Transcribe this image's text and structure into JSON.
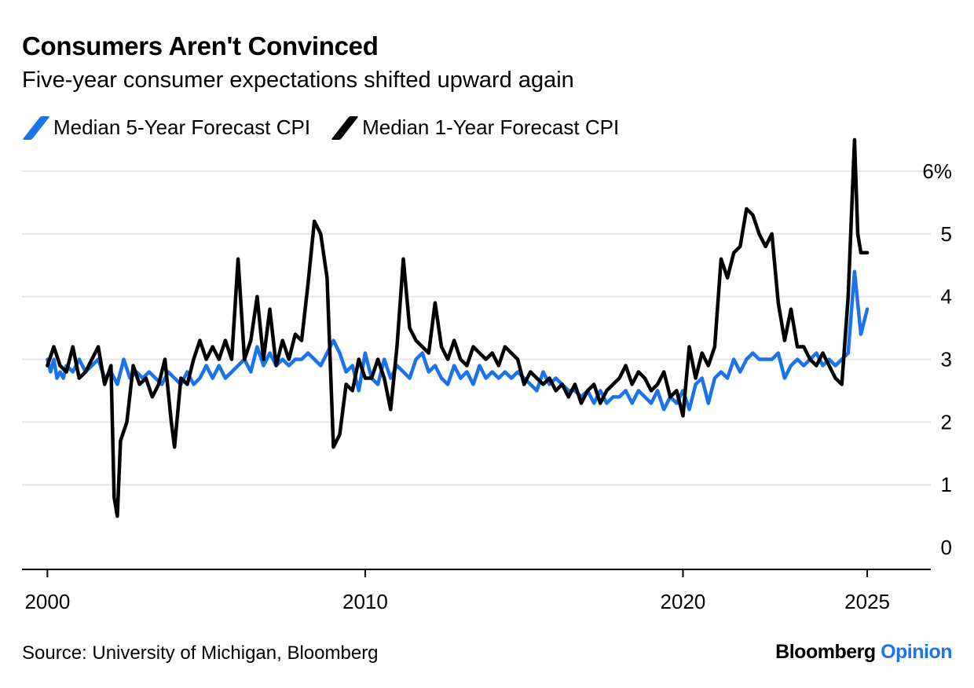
{
  "header": {
    "title": "Consumers Aren't Convinced",
    "subtitle": "Five-year consumer expectations shifted upward again"
  },
  "footer": {
    "source": "Source: University of Michigan, Bloomberg",
    "brand_primary": "Bloomberg",
    "brand_accent": "Opinion"
  },
  "colors": {
    "five_year": "#1a73e8",
    "one_year": "#000000",
    "grid": "#e6e6e6",
    "axis": "#000000"
  },
  "chart_data": {
    "type": "line",
    "title": "Consumers Aren't Convinced",
    "subtitle": "Five-year consumer expectations shifted upward again",
    "xlabel": "",
    "ylabel": "",
    "xlim": [
      1999.2,
      2027.8
    ],
    "ylim": [
      -0.35,
      6.35
    ],
    "grid": "horizontal",
    "legend": "top-left",
    "x_ticks": [
      {
        "value": 2000,
        "label": "2000"
      },
      {
        "value": 2010,
        "label": "2010"
      },
      {
        "value": 2020,
        "label": "2020"
      },
      {
        "value": 2025.8,
        "label": "2025"
      }
    ],
    "y_ticks": [
      {
        "value": 0,
        "label": "0"
      },
      {
        "value": 1,
        "label": "1"
      },
      {
        "value": 2,
        "label": "2"
      },
      {
        "value": 3,
        "label": "3"
      },
      {
        "value": 4,
        "label": "4"
      },
      {
        "value": 5,
        "label": "5"
      },
      {
        "value": 6,
        "label": "6%"
      }
    ],
    "series": [
      {
        "name": "Median 5-Year Forecast CPI",
        "color": "#1a73e8",
        "points": [
          [
            2000.0,
            3.0
          ],
          [
            2000.1,
            2.8
          ],
          [
            2000.2,
            3.0
          ],
          [
            2000.3,
            2.7
          ],
          [
            2000.4,
            2.8
          ],
          [
            2000.5,
            2.7
          ],
          [
            2000.6,
            2.9
          ],
          [
            2000.8,
            2.8
          ],
          [
            2001.0,
            3.0
          ],
          [
            2001.2,
            2.8
          ],
          [
            2001.4,
            2.9
          ],
          [
            2001.6,
            3.0
          ],
          [
            2001.8,
            2.7
          ],
          [
            2002.0,
            2.8
          ],
          [
            2002.2,
            2.6
          ],
          [
            2002.4,
            3.0
          ],
          [
            2002.6,
            2.7
          ],
          [
            2002.8,
            2.8
          ],
          [
            2003.0,
            2.7
          ],
          [
            2003.2,
            2.8
          ],
          [
            2003.4,
            2.7
          ],
          [
            2003.6,
            2.6
          ],
          [
            2003.8,
            2.8
          ],
          [
            2004.0,
            2.7
          ],
          [
            2004.2,
            2.6
          ],
          [
            2004.4,
            2.8
          ],
          [
            2004.6,
            2.6
          ],
          [
            2004.8,
            2.7
          ],
          [
            2005.0,
            2.9
          ],
          [
            2005.2,
            2.7
          ],
          [
            2005.4,
            2.9
          ],
          [
            2005.6,
            2.7
          ],
          [
            2005.8,
            2.8
          ],
          [
            2006.0,
            2.9
          ],
          [
            2006.2,
            3.0
          ],
          [
            2006.4,
            2.8
          ],
          [
            2006.6,
            3.2
          ],
          [
            2006.8,
            2.9
          ],
          [
            2007.0,
            3.1
          ],
          [
            2007.2,
            2.9
          ],
          [
            2007.4,
            3.0
          ],
          [
            2007.6,
            2.9
          ],
          [
            2007.8,
            3.0
          ],
          [
            2008.0,
            3.0
          ],
          [
            2008.2,
            3.1
          ],
          [
            2008.4,
            3.0
          ],
          [
            2008.6,
            2.9
          ],
          [
            2008.8,
            3.1
          ],
          [
            2009.0,
            3.3
          ],
          [
            2009.2,
            3.1
          ],
          [
            2009.4,
            2.8
          ],
          [
            2009.6,
            2.9
          ],
          [
            2009.8,
            2.5
          ],
          [
            2010.0,
            3.1
          ],
          [
            2010.2,
            2.7
          ],
          [
            2010.4,
            2.6
          ],
          [
            2010.6,
            3.0
          ],
          [
            2010.8,
            2.7
          ],
          [
            2011.0,
            2.9
          ],
          [
            2011.2,
            2.8
          ],
          [
            2011.4,
            2.7
          ],
          [
            2011.6,
            3.0
          ],
          [
            2011.8,
            3.1
          ],
          [
            2012.0,
            2.8
          ],
          [
            2012.2,
            2.9
          ],
          [
            2012.4,
            2.7
          ],
          [
            2012.6,
            2.6
          ],
          [
            2012.8,
            2.9
          ],
          [
            2013.0,
            2.7
          ],
          [
            2013.2,
            2.8
          ],
          [
            2013.4,
            2.6
          ],
          [
            2013.6,
            2.9
          ],
          [
            2013.8,
            2.7
          ],
          [
            2014.0,
            2.8
          ],
          [
            2014.2,
            2.7
          ],
          [
            2014.4,
            2.8
          ],
          [
            2014.6,
            2.7
          ],
          [
            2014.8,
            2.8
          ],
          [
            2015.0,
            2.7
          ],
          [
            2015.2,
            2.6
          ],
          [
            2015.4,
            2.5
          ],
          [
            2015.6,
            2.8
          ],
          [
            2015.8,
            2.6
          ],
          [
            2016.0,
            2.7
          ],
          [
            2016.2,
            2.6
          ],
          [
            2016.4,
            2.5
          ],
          [
            2016.6,
            2.5
          ],
          [
            2016.8,
            2.4
          ],
          [
            2017.0,
            2.5
          ],
          [
            2017.2,
            2.3
          ],
          [
            2017.4,
            2.5
          ],
          [
            2017.6,
            2.3
          ],
          [
            2017.8,
            2.4
          ],
          [
            2018.0,
            2.4
          ],
          [
            2018.2,
            2.5
          ],
          [
            2018.4,
            2.3
          ],
          [
            2018.6,
            2.5
          ],
          [
            2018.8,
            2.4
          ],
          [
            2019.0,
            2.3
          ],
          [
            2019.2,
            2.5
          ],
          [
            2019.4,
            2.2
          ],
          [
            2019.6,
            2.4
          ],
          [
            2019.8,
            2.3
          ],
          [
            2020.0,
            2.5
          ],
          [
            2020.2,
            2.2
          ],
          [
            2020.4,
            2.6
          ],
          [
            2020.6,
            2.7
          ],
          [
            2020.8,
            2.3
          ],
          [
            2021.0,
            2.7
          ],
          [
            2021.2,
            2.8
          ],
          [
            2021.4,
            2.7
          ],
          [
            2021.6,
            3.0
          ],
          [
            2021.8,
            2.8
          ],
          [
            2022.0,
            3.0
          ],
          [
            2022.2,
            3.1
          ],
          [
            2022.4,
            3.0
          ],
          [
            2022.6,
            3.0
          ],
          [
            2022.8,
            3.0
          ],
          [
            2023.0,
            3.1
          ],
          [
            2023.2,
            2.7
          ],
          [
            2023.4,
            2.9
          ],
          [
            2023.6,
            3.0
          ],
          [
            2023.8,
            2.9
          ],
          [
            2024.0,
            3.0
          ],
          [
            2024.2,
            3.1
          ],
          [
            2024.4,
            2.9
          ],
          [
            2024.6,
            3.0
          ],
          [
            2024.8,
            2.9
          ],
          [
            2025.0,
            3.0
          ],
          [
            2025.2,
            3.1
          ],
          [
            2025.4,
            4.4
          ],
          [
            2025.6,
            3.4
          ],
          [
            2025.8,
            3.8
          ]
        ]
      },
      {
        "name": "Median 1-Year Forecast CPI",
        "color": "#000000",
        "points": [
          [
            2000.0,
            2.9
          ],
          [
            2000.2,
            3.2
          ],
          [
            2000.4,
            2.9
          ],
          [
            2000.6,
            2.8
          ],
          [
            2000.8,
            3.2
          ],
          [
            2001.0,
            2.7
          ],
          [
            2001.2,
            2.8
          ],
          [
            2001.4,
            3.0
          ],
          [
            2001.6,
            3.2
          ],
          [
            2001.8,
            2.6
          ],
          [
            2002.0,
            2.9
          ],
          [
            2002.1,
            0.8
          ],
          [
            2002.2,
            0.5
          ],
          [
            2002.3,
            1.7
          ],
          [
            2002.5,
            2.0
          ],
          [
            2002.7,
            2.9
          ],
          [
            2002.9,
            2.6
          ],
          [
            2003.1,
            2.7
          ],
          [
            2003.3,
            2.4
          ],
          [
            2003.5,
            2.6
          ],
          [
            2003.7,
            3.0
          ],
          [
            2003.9,
            2.0
          ],
          [
            2004.0,
            1.6
          ],
          [
            2004.2,
            2.7
          ],
          [
            2004.4,
            2.6
          ],
          [
            2004.6,
            3.0
          ],
          [
            2004.8,
            3.3
          ],
          [
            2005.0,
            3.0
          ],
          [
            2005.2,
            3.2
          ],
          [
            2005.4,
            3.0
          ],
          [
            2005.6,
            3.3
          ],
          [
            2005.8,
            3.0
          ],
          [
            2006.0,
            4.6
          ],
          [
            2006.2,
            3.0
          ],
          [
            2006.4,
            3.3
          ],
          [
            2006.6,
            4.0
          ],
          [
            2006.8,
            3.0
          ],
          [
            2007.0,
            3.8
          ],
          [
            2007.2,
            2.9
          ],
          [
            2007.4,
            3.3
          ],
          [
            2007.6,
            3.0
          ],
          [
            2007.8,
            3.4
          ],
          [
            2008.0,
            3.3
          ],
          [
            2008.2,
            4.2
          ],
          [
            2008.4,
            5.2
          ],
          [
            2008.6,
            5.0
          ],
          [
            2008.8,
            4.3
          ],
          [
            2009.0,
            1.6
          ],
          [
            2009.2,
            1.8
          ],
          [
            2009.4,
            2.6
          ],
          [
            2009.6,
            2.5
          ],
          [
            2009.8,
            3.0
          ],
          [
            2010.0,
            2.7
          ],
          [
            2010.2,
            2.7
          ],
          [
            2010.4,
            3.0
          ],
          [
            2010.6,
            2.7
          ],
          [
            2010.8,
            2.2
          ],
          [
            2011.0,
            3.2
          ],
          [
            2011.2,
            4.6
          ],
          [
            2011.4,
            3.5
          ],
          [
            2011.6,
            3.3
          ],
          [
            2011.8,
            3.2
          ],
          [
            2012.0,
            3.1
          ],
          [
            2012.2,
            3.9
          ],
          [
            2012.4,
            3.2
          ],
          [
            2012.6,
            3.0
          ],
          [
            2012.8,
            3.3
          ],
          [
            2013.0,
            3.0
          ],
          [
            2013.2,
            2.9
          ],
          [
            2013.4,
            3.2
          ],
          [
            2013.6,
            3.1
          ],
          [
            2013.8,
            3.0
          ],
          [
            2014.0,
            3.1
          ],
          [
            2014.2,
            2.9
          ],
          [
            2014.4,
            3.2
          ],
          [
            2014.6,
            3.1
          ],
          [
            2014.8,
            3.0
          ],
          [
            2015.0,
            2.6
          ],
          [
            2015.2,
            2.8
          ],
          [
            2015.4,
            2.7
          ],
          [
            2015.6,
            2.6
          ],
          [
            2015.8,
            2.7
          ],
          [
            2016.0,
            2.5
          ],
          [
            2016.2,
            2.6
          ],
          [
            2016.4,
            2.4
          ],
          [
            2016.6,
            2.6
          ],
          [
            2016.8,
            2.3
          ],
          [
            2017.0,
            2.5
          ],
          [
            2017.2,
            2.6
          ],
          [
            2017.4,
            2.3
          ],
          [
            2017.6,
            2.5
          ],
          [
            2017.8,
            2.6
          ],
          [
            2018.0,
            2.7
          ],
          [
            2018.2,
            2.9
          ],
          [
            2018.4,
            2.6
          ],
          [
            2018.6,
            2.8
          ],
          [
            2018.8,
            2.7
          ],
          [
            2019.0,
            2.5
          ],
          [
            2019.2,
            2.6
          ],
          [
            2019.4,
            2.8
          ],
          [
            2019.6,
            2.4
          ],
          [
            2019.8,
            2.5
          ],
          [
            2020.0,
            2.1
          ],
          [
            2020.2,
            3.2
          ],
          [
            2020.4,
            2.7
          ],
          [
            2020.6,
            3.1
          ],
          [
            2020.8,
            2.9
          ],
          [
            2021.0,
            3.2
          ],
          [
            2021.2,
            4.6
          ],
          [
            2021.4,
            4.3
          ],
          [
            2021.6,
            4.7
          ],
          [
            2021.8,
            4.8
          ],
          [
            2022.0,
            5.4
          ],
          [
            2022.2,
            5.3
          ],
          [
            2022.4,
            5.0
          ],
          [
            2022.6,
            4.8
          ],
          [
            2022.8,
            5.0
          ],
          [
            2023.0,
            3.9
          ],
          [
            2023.2,
            3.3
          ],
          [
            2023.4,
            3.8
          ],
          [
            2023.6,
            3.2
          ],
          [
            2023.8,
            3.2
          ],
          [
            2024.0,
            3.0
          ],
          [
            2024.2,
            2.9
          ],
          [
            2024.4,
            3.1
          ],
          [
            2024.6,
            2.9
          ],
          [
            2024.8,
            2.7
          ],
          [
            2025.0,
            2.6
          ],
          [
            2025.2,
            4.0
          ],
          [
            2025.4,
            6.5
          ],
          [
            2025.5,
            5.0
          ],
          [
            2025.6,
            4.7
          ],
          [
            2025.8,
            4.7
          ]
        ]
      }
    ]
  }
}
